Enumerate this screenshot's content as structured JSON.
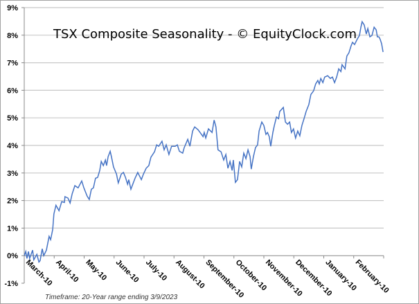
{
  "chart_data": {
    "type": "line",
    "title": "TSX Composite Seasonality - © EquityClock.com",
    "footnote": "Timeframe: 20-Year range ending 3/9/2023",
    "xlabel": "",
    "ylabel": "",
    "ylim": [
      -1,
      9
    ],
    "xlim": [
      0,
      12
    ],
    "grid": true,
    "y_ticks": [
      -1,
      0,
      1,
      2,
      3,
      4,
      5,
      6,
      7,
      8,
      9
    ],
    "y_tick_labels": [
      "-1%",
      "0%",
      "1%",
      "2%",
      "3%",
      "4%",
      "5%",
      "6%",
      "7%",
      "8%",
      "9%"
    ],
    "x_tick_labels": [
      "March-10",
      "April-10",
      "May-10",
      "June-10",
      "July-10",
      "August-10",
      "September-10",
      "October-10",
      "November-10",
      "December-10",
      "January-10",
      "February-10"
    ],
    "series": [
      {
        "name": "TSX Composite",
        "color": "#4472c4",
        "x": [
          0,
          0.05,
          0.09,
          0.14,
          0.18,
          0.28,
          0.32,
          0.42,
          0.49,
          0.53,
          0.6,
          0.65,
          0.74,
          0.83,
          0.88,
          0.95,
          0.99,
          1.06,
          1.16,
          1.25,
          1.34,
          1.36,
          1.46,
          1.53,
          1.6,
          1.69,
          1.8,
          1.92,
          1.99,
          2.1,
          2.17,
          2.24,
          2.31,
          2.38,
          2.45,
          2.52,
          2.57,
          2.64,
          2.71,
          2.75,
          2.8,
          2.87,
          2.91,
          2.98,
          3.08,
          3.14,
          3.24,
          3.31,
          3.38,
          3.45,
          3.49,
          3.56,
          3.63,
          3.7,
          3.79,
          3.84,
          3.91,
          3.98,
          4.07,
          4.16,
          4.23,
          4.35,
          4.42,
          4.49,
          4.6,
          4.67,
          4.74,
          4.83,
          4.92,
          5.04,
          5.11,
          5.18,
          5.29,
          5.34,
          5.46,
          5.53,
          5.62,
          5.69,
          5.8,
          5.87,
          5.97,
          6.01,
          6.06,
          6.15,
          6.27,
          6.34,
          6.4,
          6.47,
          6.57,
          6.66,
          6.73,
          6.8,
          6.87,
          6.94,
          6.98,
          7.05,
          7.12,
          7.19,
          7.26,
          7.33,
          7.4,
          7.47,
          7.54,
          7.58,
          7.65,
          7.72,
          7.79,
          7.84,
          7.93,
          8.0,
          8.07,
          8.12,
          8.18,
          8.23,
          8.3,
          8.35,
          8.42,
          8.49,
          8.53,
          8.65,
          8.72,
          8.79,
          8.86,
          8.92,
          8.99,
          9.06,
          9.13,
          9.2,
          9.27,
          9.34,
          9.41,
          9.5,
          9.57,
          9.66,
          9.73,
          9.8,
          9.85,
          9.9,
          9.97,
          10.03,
          10.13,
          10.22,
          10.29,
          10.36,
          10.43,
          10.5,
          10.57,
          10.61,
          10.71,
          10.77,
          10.84,
          10.91,
          10.96,
          11.03,
          11.12,
          11.19,
          11.24,
          11.28,
          11.35,
          11.42,
          11.47,
          11.54,
          11.61,
          11.68,
          11.75,
          11.79,
          11.84,
          11.88,
          11.93,
          11.98
        ],
        "y": [
          0,
          0.15,
          -0.1,
          0.15,
          -0.1,
          0.2,
          -0.15,
          0.05,
          -0.23,
          -0.18,
          0.25,
          0.0,
          0.2,
          0.7,
          0.58,
          0.95,
          1.51,
          1.83,
          1.63,
          1.96,
          1.93,
          2.14,
          2.09,
          1.91,
          2.24,
          2.54,
          2.46,
          2.71,
          2.46,
          2.16,
          2.04,
          2.41,
          2.46,
          2.81,
          2.84,
          3.09,
          3.42,
          3.27,
          3.47,
          3.27,
          3.59,
          3.79,
          3.59,
          3.22,
          2.96,
          2.64,
          2.96,
          3.02,
          2.84,
          2.59,
          2.76,
          2.41,
          2.61,
          2.81,
          3.02,
          2.91,
          2.76,
          2.96,
          3.17,
          3.27,
          3.57,
          3.77,
          4.02,
          3.97,
          4.15,
          3.84,
          4.02,
          3.67,
          3.97,
          3.97,
          4.02,
          3.79,
          3.72,
          3.92,
          4.22,
          3.97,
          4.52,
          4.67,
          4.57,
          4.47,
          4.32,
          4.47,
          4.27,
          4.6,
          4.47,
          4.92,
          4.67,
          3.84,
          3.77,
          3.47,
          3.67,
          3.17,
          3.42,
          3.09,
          3.47,
          2.66,
          2.76,
          3.42,
          3.22,
          3.72,
          3.52,
          3.84,
          3.59,
          3.14,
          3.59,
          3.92,
          4.02,
          4.52,
          4.85,
          4.72,
          4.4,
          4.47,
          4.32,
          3.97,
          4.47,
          4.72,
          5.03,
          4.97,
          5.23,
          5.38,
          4.85,
          4.77,
          4.85,
          4.47,
          4.6,
          4.27,
          4.52,
          4.35,
          4.72,
          4.97,
          5.23,
          5.48,
          5.85,
          5.98,
          6.23,
          6.36,
          6.23,
          6.43,
          6.28,
          6.48,
          6.53,
          6.43,
          6.48,
          6.28,
          6.48,
          6.78,
          6.68,
          6.93,
          6.78,
          7.24,
          7.36,
          7.61,
          7.74,
          7.66,
          7.86,
          7.99,
          8.29,
          8.49,
          8.37,
          8.04,
          8.24,
          7.94,
          7.99,
          8.29,
          8.19,
          7.94,
          7.94,
          7.86,
          7.69,
          7.39
        ]
      }
    ]
  }
}
